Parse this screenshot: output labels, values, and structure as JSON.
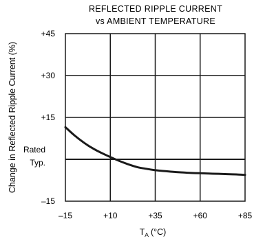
{
  "chart_data": {
    "type": "line",
    "title": "REFLECTED RIPPLE CURRENT",
    "subtitle": "vs AMBIENT TEMPERATURE",
    "xlabel": "T",
    "xlabel_sub": "A",
    "xlabel_unit": "(°C)",
    "ylabel": "Change in Reflected Ripple Current (%)",
    "xlim": [
      -15,
      85
    ],
    "ylim": [
      -15,
      45
    ],
    "x_ticks": [
      {
        "value": -15,
        "label": "–15"
      },
      {
        "value": 10,
        "label": "+10"
      },
      {
        "value": 35,
        "label": "+35"
      },
      {
        "value": 60,
        "label": "+60"
      },
      {
        "value": 85,
        "label": "+85"
      }
    ],
    "y_ticks": [
      {
        "value": -15,
        "label": "–15"
      },
      {
        "value": 0,
        "label": ""
      },
      {
        "value": 15,
        "label": "+15"
      },
      {
        "value": 30,
        "label": "+30"
      },
      {
        "value": 45,
        "label": "+45"
      }
    ],
    "y_annotation": {
      "value": 0,
      "line1": "Rated",
      "line2": "Typ."
    },
    "grid": true,
    "series": [
      {
        "color": "#1a1a1a",
        "x": [
          -15,
          -10,
          -5,
          0,
          5,
          10,
          15,
          20,
          25,
          30,
          35,
          40,
          45,
          50,
          55,
          60,
          65,
          70,
          75,
          80,
          85
        ],
        "y": [
          11.5,
          8.6,
          6.1,
          4.0,
          2.3,
          0.8,
          -0.6,
          -1.8,
          -2.8,
          -3.4,
          -3.9,
          -4.2,
          -4.5,
          -4.7,
          -4.9,
          -5.0,
          -5.1,
          -5.2,
          -5.3,
          -5.4,
          -5.6
        ]
      }
    ]
  }
}
